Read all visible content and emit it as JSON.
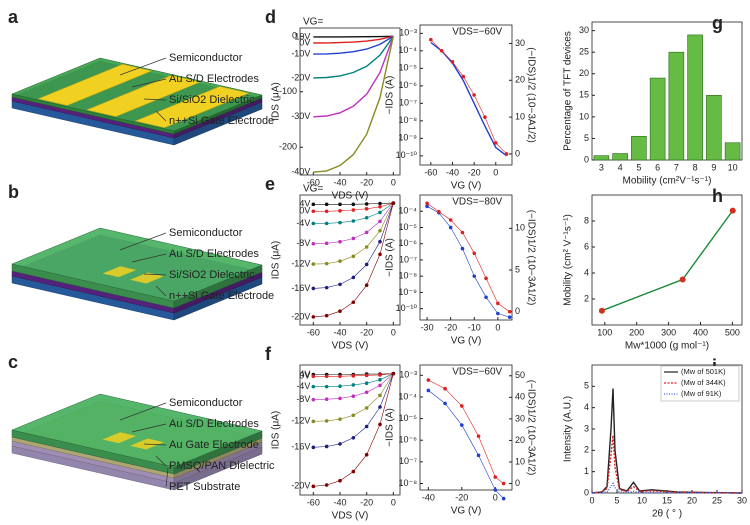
{
  "diagrams": [
    {
      "panel": "a",
      "labels": [
        "Semiconductor",
        "Au S/D Electrodes",
        "Si/SiO2 Dielectric",
        "n++Si Gate Electrode"
      ]
    },
    {
      "panel": "b",
      "labels": [
        "Semiconductor",
        "Au S/D Electrodes",
        "Si/SiO2 Dielectric",
        "n++Si Gate Electrode"
      ]
    },
    {
      "panel": "c",
      "labels": [
        "Semiconductor",
        "Au S/D Electrodes",
        "Au Gate Electrode",
        "PMSQ/PAN Dielectric",
        "PET Substrate"
      ]
    }
  ],
  "chart_data": [
    {
      "type": "line",
      "panel": "d",
      "annotations": [
        "VG="
      ],
      "xlabel": "VDS (V)",
      "ylabel": "IDS (μA)",
      "x": [
        -60,
        -50,
        -40,
        -30,
        -20,
        -10,
        0
      ],
      "xlim": [
        -70,
        5
      ],
      "xticks": [
        -60,
        -40,
        -20,
        0
      ],
      "ylim": [
        -250,
        15
      ],
      "yticks": [
        0,
        -100,
        -200
      ],
      "series": [
        {
          "name": "10V",
          "color": "#111111",
          "values": [
            -1,
            -1,
            -1,
            -0.9,
            -0.7,
            -0.5,
            0
          ]
        },
        {
          "name": "0V",
          "color": "#e02020",
          "values": [
            -12,
            -11.9,
            -11.4,
            -10.4,
            -8.6,
            -5.4,
            0
          ]
        },
        {
          "name": "-10V",
          "color": "#2040d0",
          "values": [
            -32,
            -31.7,
            -30.4,
            -27.8,
            -23,
            -14.4,
            0
          ]
        },
        {
          "name": "-20V",
          "color": "#008080",
          "values": [
            -75,
            -74.3,
            -71.3,
            -65.3,
            -54,
            -33.8,
            0
          ]
        },
        {
          "name": "-30V",
          "color": "#c030c0",
          "values": [
            -145,
            -143.6,
            -137.8,
            -126.2,
            -104.4,
            -65.3,
            0
          ]
        },
        {
          "name": "-40V",
          "color": "#8a8a20",
          "values": [
            -245,
            -242.6,
            -232.8,
            -213.2,
            -176.4,
            -110.3,
            0
          ]
        }
      ]
    },
    {
      "type": "line",
      "annotations": [
        "VDS=−60V"
      ],
      "xlabel": "VG (V)",
      "ylabel": "−IDS (A)",
      "y2label": "(−IDS)1/2 (10−3A1/2)",
      "x": [
        -60,
        -50,
        -40,
        -30,
        -20,
        -10,
        0,
        10
      ],
      "xlim": [
        -70,
        15
      ],
      "xticks": [
        -60,
        -40,
        -20,
        0
      ],
      "ylog": true,
      "ylim": [
        3e-11,
        0.003
      ],
      "yticks": [
        {
          "value": 0.001,
          "label": "10⁻³"
        },
        {
          "value": 0.0001,
          "label": "10⁻⁴"
        },
        {
          "value": 1e-05,
          "label": "10⁻⁵"
        },
        {
          "value": 1e-06,
          "label": "10⁻⁶"
        },
        {
          "value": 1e-07,
          "label": "10⁻⁷"
        },
        {
          "value": 1e-08,
          "label": "10⁻⁸"
        },
        {
          "value": 1e-09,
          "label": "10⁻⁹"
        },
        {
          "value": 1e-10,
          "label": "10⁻¹⁰"
        }
      ],
      "y2lim": [
        -3,
        35
      ],
      "y2ticks": [
        0,
        10,
        20,
        30
      ],
      "series": [
        {
          "color": "#2040d0",
          "values": [
            0.0003,
            0.0001,
            2e-05,
            2e-06,
            1e-07,
            5e-09,
            3e-10,
            1e-10
          ]
        },
        {
          "color": "#e02020",
          "axis": "y2",
          "marker": true,
          "values": [
            31,
            28,
            25,
            21,
            16,
            10,
            3,
            0
          ]
        }
      ]
    },
    {
      "type": "line",
      "panel": "e",
      "annotations": [
        "VG="
      ],
      "xlabel": "VDS (V)",
      "ylabel": "IDS (μA)",
      "x": [
        -60,
        -50,
        -40,
        -30,
        -20,
        -10,
        0
      ],
      "xlim": [
        -70,
        5
      ],
      "xticks": [
        -60,
        -40,
        -20,
        0
      ],
      "ylim": [
        -30,
        2
      ],
      "series": [
        {
          "name": "4V",
          "color": "#111111",
          "marker": true,
          "values": [
            -0.3,
            -0.3,
            -0.3,
            -0.3,
            -0.2,
            -0.1,
            0
          ]
        },
        {
          "name": "0V",
          "color": "#e02020",
          "marker": true,
          "values": [
            -2,
            -2,
            -1.9,
            -1.7,
            -1.4,
            -0.9,
            0
          ]
        },
        {
          "name": "-4V",
          "color": "#008080",
          "marker": true,
          "values": [
            -5,
            -5,
            -4.8,
            -4.4,
            -3.6,
            -2.3,
            0
          ]
        },
        {
          "name": "-8V",
          "color": "#c030c0",
          "marker": true,
          "values": [
            -10,
            -9.9,
            -9.5,
            -8.7,
            -7.2,
            -4.5,
            0
          ]
        },
        {
          "name": "-12V",
          "color": "#8a8a20",
          "marker": true,
          "values": [
            -15,
            -14.9,
            -14.3,
            -13.1,
            -10.8,
            -6.8,
            0
          ]
        },
        {
          "name": "-16V",
          "color": "#202080",
          "marker": true,
          "values": [
            -21,
            -20.8,
            -20,
            -18.3,
            -15.1,
            -9.5,
            0
          ]
        },
        {
          "name": "-20V",
          "color": "#800000",
          "marker": true,
          "values": [
            -28,
            -27.7,
            -26.6,
            -24.4,
            -20.2,
            -12.6,
            0
          ]
        }
      ]
    },
    {
      "type": "line",
      "annotations": [
        "VDS=−80V"
      ],
      "xlabel": "VG (V)",
      "ylabel": "−IDS (A)",
      "y2label": "(−IDS)1/2 (10−3A1/2)",
      "x": [
        -30,
        -25,
        -20,
        -15,
        -10,
        -5,
        0,
        5
      ],
      "xlim": [
        -33,
        6
      ],
      "xticks": [
        -30,
        -20,
        -10,
        0
      ],
      "ylog": true,
      "ylim": [
        2e-11,
        0.001
      ],
      "yticks": [
        {
          "value": 0.0001,
          "label": "10⁻⁴"
        },
        {
          "value": 1e-05,
          "label": "10⁻⁵"
        },
        {
          "value": 1e-06,
          "label": "10⁻⁶"
        },
        {
          "value": 1e-07,
          "label": "10⁻⁷"
        },
        {
          "value": 1e-08,
          "label": "10⁻⁸"
        },
        {
          "value": 1e-09,
          "label": "10⁻⁹"
        },
        {
          "value": 1e-10,
          "label": "10⁻¹⁰"
        }
      ],
      "y2lim": [
        -1,
        14
      ],
      "y2ticks": [
        0,
        5,
        10
      ],
      "series": [
        {
          "color": "#2040d0",
          "marker": true,
          "values": [
            0.0002,
            8e-05,
            1e-05,
            5e-07,
            1e-08,
            5e-10,
            5e-11,
            3e-11
          ]
        },
        {
          "color": "#e02020",
          "axis": "y2",
          "marker": true,
          "values": [
            13,
            12,
            11,
            9.5,
            7,
            4,
            1,
            0
          ]
        }
      ]
    },
    {
      "type": "line",
      "panel": "f",
      "xlabel": "VDS (V)",
      "ylabel": "IDS (μA)",
      "x": [
        -60,
        -50,
        -40,
        -30,
        -20,
        -10,
        0
      ],
      "xlim": [
        -70,
        5
      ],
      "xticks": [
        -60,
        -40,
        -20,
        0
      ],
      "ylim": [
        -28,
        2
      ],
      "series": [
        {
          "name": "4V",
          "color": "#111111",
          "marker": true,
          "values": [
            -0.2,
            -0.2,
            -0.2,
            -0.2,
            -0.1,
            -0.1,
            0
          ]
        },
        {
          "name": "0V",
          "color": "#e02020",
          "marker": true,
          "values": [
            -0.6,
            -0.6,
            -0.6,
            -0.5,
            -0.4,
            -0.3,
            0
          ]
        },
        {
          "name": "-4V",
          "color": "#008080",
          "marker": true,
          "values": [
            -3,
            -3,
            -2.9,
            -2.6,
            -2.2,
            -1.4,
            0
          ]
        },
        {
          "name": "-8V",
          "color": "#c030c0",
          "marker": true,
          "values": [
            -6,
            -5.9,
            -5.7,
            -5.2,
            -4.3,
            -2.7,
            0
          ]
        },
        {
          "name": "-12V",
          "color": "#8a8a20",
          "marker": true,
          "values": [
            -11,
            -10.9,
            -10.5,
            -9.6,
            -7.9,
            -5,
            0
          ]
        },
        {
          "name": "-16V",
          "color": "#202080",
          "marker": true,
          "values": [
            -17,
            -16.8,
            -16.2,
            -14.8,
            -12.2,
            -7.7,
            0
          ]
        },
        {
          "name": "-20V",
          "color": "#800000",
          "marker": true,
          "values": [
            -26,
            -25.7,
            -24.7,
            -22.6,
            -18.7,
            -11.7,
            0
          ]
        }
      ]
    },
    {
      "type": "line",
      "annotations": [
        "VDS=−60V"
      ],
      "xlabel": "VG (V)",
      "ylabel": "−IDS (A)",
      "y2label": "(−IDS)1/2 (10−3A1/2)",
      "x": [
        -40,
        -30,
        -20,
        -10,
        0,
        5
      ],
      "xlim": [
        -45,
        10
      ],
      "xticks": [
        -40,
        -20,
        0
      ],
      "ylog": true,
      "ylim": [
        5e-09,
        0.003
      ],
      "yticks": [
        {
          "value": 0.001,
          "label": "10⁻³"
        },
        {
          "value": 0.0001,
          "label": "10⁻⁴"
        },
        {
          "value": 1e-05,
          "label": "10⁻⁵"
        },
        {
          "value": 1e-06,
          "label": "10⁻⁶"
        },
        {
          "value": 1e-07,
          "label": "10⁻⁷"
        },
        {
          "value": 1e-08,
          "label": "10⁻⁸"
        }
      ],
      "y2lim": [
        -3,
        55
      ],
      "y2ticks": [
        0,
        10,
        20,
        30,
        40,
        50
      ],
      "series": [
        {
          "color": "#2040d0",
          "marker": true,
          "values": [
            0.0002,
            5e-05,
            5e-06,
            2e-07,
            5e-09,
            2e-09
          ]
        },
        {
          "color": "#e02020",
          "axis": "y2",
          "marker": true,
          "values": [
            48,
            44,
            36,
            22,
            3,
            0
          ]
        }
      ]
    },
    {
      "type": "bar",
      "panel": "g",
      "xlabel": "Mobility (cm²V⁻¹s⁻¹)",
      "ylabel": "Percentage of TFT devices",
      "categories": [
        "3",
        "4",
        "5",
        "6",
        "7",
        "8",
        "9",
        "10"
      ],
      "values": [
        1,
        1.5,
        5.5,
        19,
        25,
        29,
        15,
        4
      ],
      "color": "#66bb44",
      "ylim": [
        0,
        32
      ],
      "yticks": [
        0,
        5,
        10,
        15,
        20,
        25,
        30
      ]
    },
    {
      "type": "line",
      "panel": "h",
      "xlabel": "Mw*1000 (g mol⁻¹)",
      "ylabel": "Mobility (cm² V⁻¹s⁻¹)",
      "xlim": [
        60,
        530
      ],
      "xticks": [
        100,
        200,
        300,
        400,
        500
      ],
      "ylim": [
        0,
        10
      ],
      "yticks": [
        2,
        4,
        6,
        8
      ],
      "series": [
        {
          "color": "#1a8a3a",
          "marker": true,
          "marker_color": "#d03020",
          "x": [
            91,
            344,
            501
          ],
          "values": [
            1.1,
            3.5,
            8.8
          ]
        }
      ]
    },
    {
      "type": "line",
      "panel": "i",
      "xlabel": "2θ ( ° )",
      "ylabel": "Intensity (A.U.)",
      "legend": "upper right",
      "x": [
        0,
        2,
        3,
        3.8,
        4.2,
        4.6,
        5.5,
        7,
        8.3,
        9.5,
        12,
        17,
        22,
        30
      ],
      "xlim": [
        0,
        30
      ],
      "xticks": [
        0,
        5,
        10,
        15,
        20,
        25,
        30
      ],
      "ylim": [
        0,
        6
      ],
      "yticks": [
        0,
        1,
        2,
        3,
        4,
        5
      ],
      "series": [
        {
          "name": "(Mw of 501K)",
          "color": "#222222",
          "values": [
            0,
            0.05,
            0.3,
            3,
            4.9,
            2,
            0.2,
            0.1,
            0.5,
            0.1,
            0.15,
            0.05,
            0.03,
            0
          ]
        },
        {
          "name": "(Mw of 344K)",
          "color": "#e02020",
          "dash": "2,1.5",
          "values": [
            0,
            0.05,
            0.2,
            1.8,
            2.7,
            1.2,
            0.15,
            0.08,
            0.3,
            0.08,
            0.1,
            0.04,
            0.02,
            0
          ]
        },
        {
          "name": "(Mw of 91K)",
          "color": "#4060e0",
          "dash": "1,1.5",
          "values": [
            0,
            0.02,
            0.05,
            0.3,
            0.45,
            0.25,
            0.05,
            0.03,
            0.08,
            0.03,
            0.03,
            0.02,
            0.01,
            0
          ]
        }
      ]
    }
  ]
}
